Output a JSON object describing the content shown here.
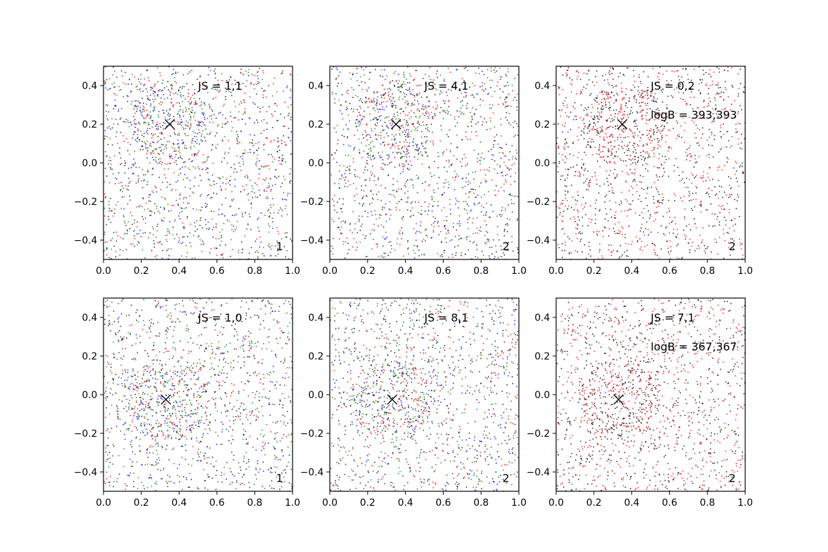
{
  "chart_data": [
    {
      "type": "scatter",
      "panel": "row1-col1",
      "xlim": [
        0.0,
        1.0
      ],
      "ylim": [
        -0.5,
        0.5
      ],
      "xticks": [
        "0.0",
        "0.2",
        "0.4",
        "0.6",
        "0.8",
        "1.0"
      ],
      "yticks": [
        "−0.4",
        "−0.2",
        "0.0",
        "0.2",
        "0.4"
      ],
      "grid": false,
      "point_colors": [
        "#ff0000",
        "#008000",
        "#0000ff",
        "#000000"
      ],
      "marker": {
        "x": 0.35,
        "y": 0.2,
        "symbol": "x"
      },
      "texts": [
        "JS = 1,1",
        "1"
      ]
    },
    {
      "type": "scatter",
      "panel": "row1-col2",
      "xlim": [
        0.0,
        1.0
      ],
      "ylim": [
        -0.5,
        0.5
      ],
      "xticks": [
        "0.0",
        "0.2",
        "0.4",
        "0.6",
        "0.8",
        "1.0"
      ],
      "yticks": [
        "−0.4",
        "−0.2",
        "0.0",
        "0.2",
        "0.4"
      ],
      "grid": false,
      "point_colors": [
        "#ff0000",
        "#008000",
        "#0000ff",
        "#000000"
      ],
      "marker": {
        "x": 0.35,
        "y": 0.2,
        "symbol": "x"
      },
      "texts": [
        "JS = 4,1",
        "2"
      ]
    },
    {
      "type": "scatter",
      "panel": "row1-col3",
      "xlim": [
        0.0,
        1.0
      ],
      "ylim": [
        -0.5,
        0.5
      ],
      "xticks": [
        "0.0",
        "0.2",
        "0.4",
        "0.6",
        "0.8",
        "1.0"
      ],
      "yticks": [
        "−0.4",
        "−0.2",
        "0.0",
        "0.2",
        "0.4"
      ],
      "grid": false,
      "point_colors": [
        "#ff0000",
        "#000000"
      ],
      "marker": {
        "x": 0.35,
        "y": 0.2,
        "symbol": "x"
      },
      "texts": [
        "JS = 0,2",
        "logB = 393,393",
        "2"
      ]
    },
    {
      "type": "scatter",
      "panel": "row2-col1",
      "xlim": [
        0.0,
        1.0
      ],
      "ylim": [
        -0.5,
        0.5
      ],
      "xticks": [
        "0.0",
        "0.2",
        "0.4",
        "0.6",
        "0.8",
        "1.0"
      ],
      "yticks": [
        "−0.4",
        "−0.2",
        "0.0",
        "0.2",
        "0.4"
      ],
      "grid": false,
      "point_colors": [
        "#ff0000",
        "#008000",
        "#0000ff",
        "#000000"
      ],
      "marker": {
        "x": 0.33,
        "y": -0.025,
        "symbol": "x"
      },
      "texts": [
        "JS = 1,0",
        "1"
      ]
    },
    {
      "type": "scatter",
      "panel": "row2-col2",
      "xlim": [
        0.0,
        1.0
      ],
      "ylim": [
        -0.5,
        0.5
      ],
      "xticks": [
        "0.0",
        "0.2",
        "0.4",
        "0.6",
        "0.8",
        "1.0"
      ],
      "yticks": [
        "−0.4",
        "−0.2",
        "0.0",
        "0.2",
        "0.4"
      ],
      "grid": false,
      "point_colors": [
        "#ff0000",
        "#008000",
        "#0000ff",
        "#000000"
      ],
      "marker": {
        "x": 0.33,
        "y": -0.025,
        "symbol": "x"
      },
      "texts": [
        "JS = 8,1",
        "2"
      ]
    },
    {
      "type": "scatter",
      "panel": "row2-col3",
      "xlim": [
        0.0,
        1.0
      ],
      "ylim": [
        -0.5,
        0.5
      ],
      "xticks": [
        "0.0",
        "0.2",
        "0.4",
        "0.6",
        "0.8",
        "1.0"
      ],
      "yticks": [
        "−0.4",
        "−0.2",
        "0.0",
        "0.2",
        "0.4"
      ],
      "grid": false,
      "point_colors": [
        "#ff0000",
        "#000000"
      ],
      "marker": {
        "x": 0.33,
        "y": -0.025,
        "symbol": "x"
      },
      "texts": [
        "JS = 7,1",
        "logB = 367,367",
        "2"
      ]
    }
  ]
}
